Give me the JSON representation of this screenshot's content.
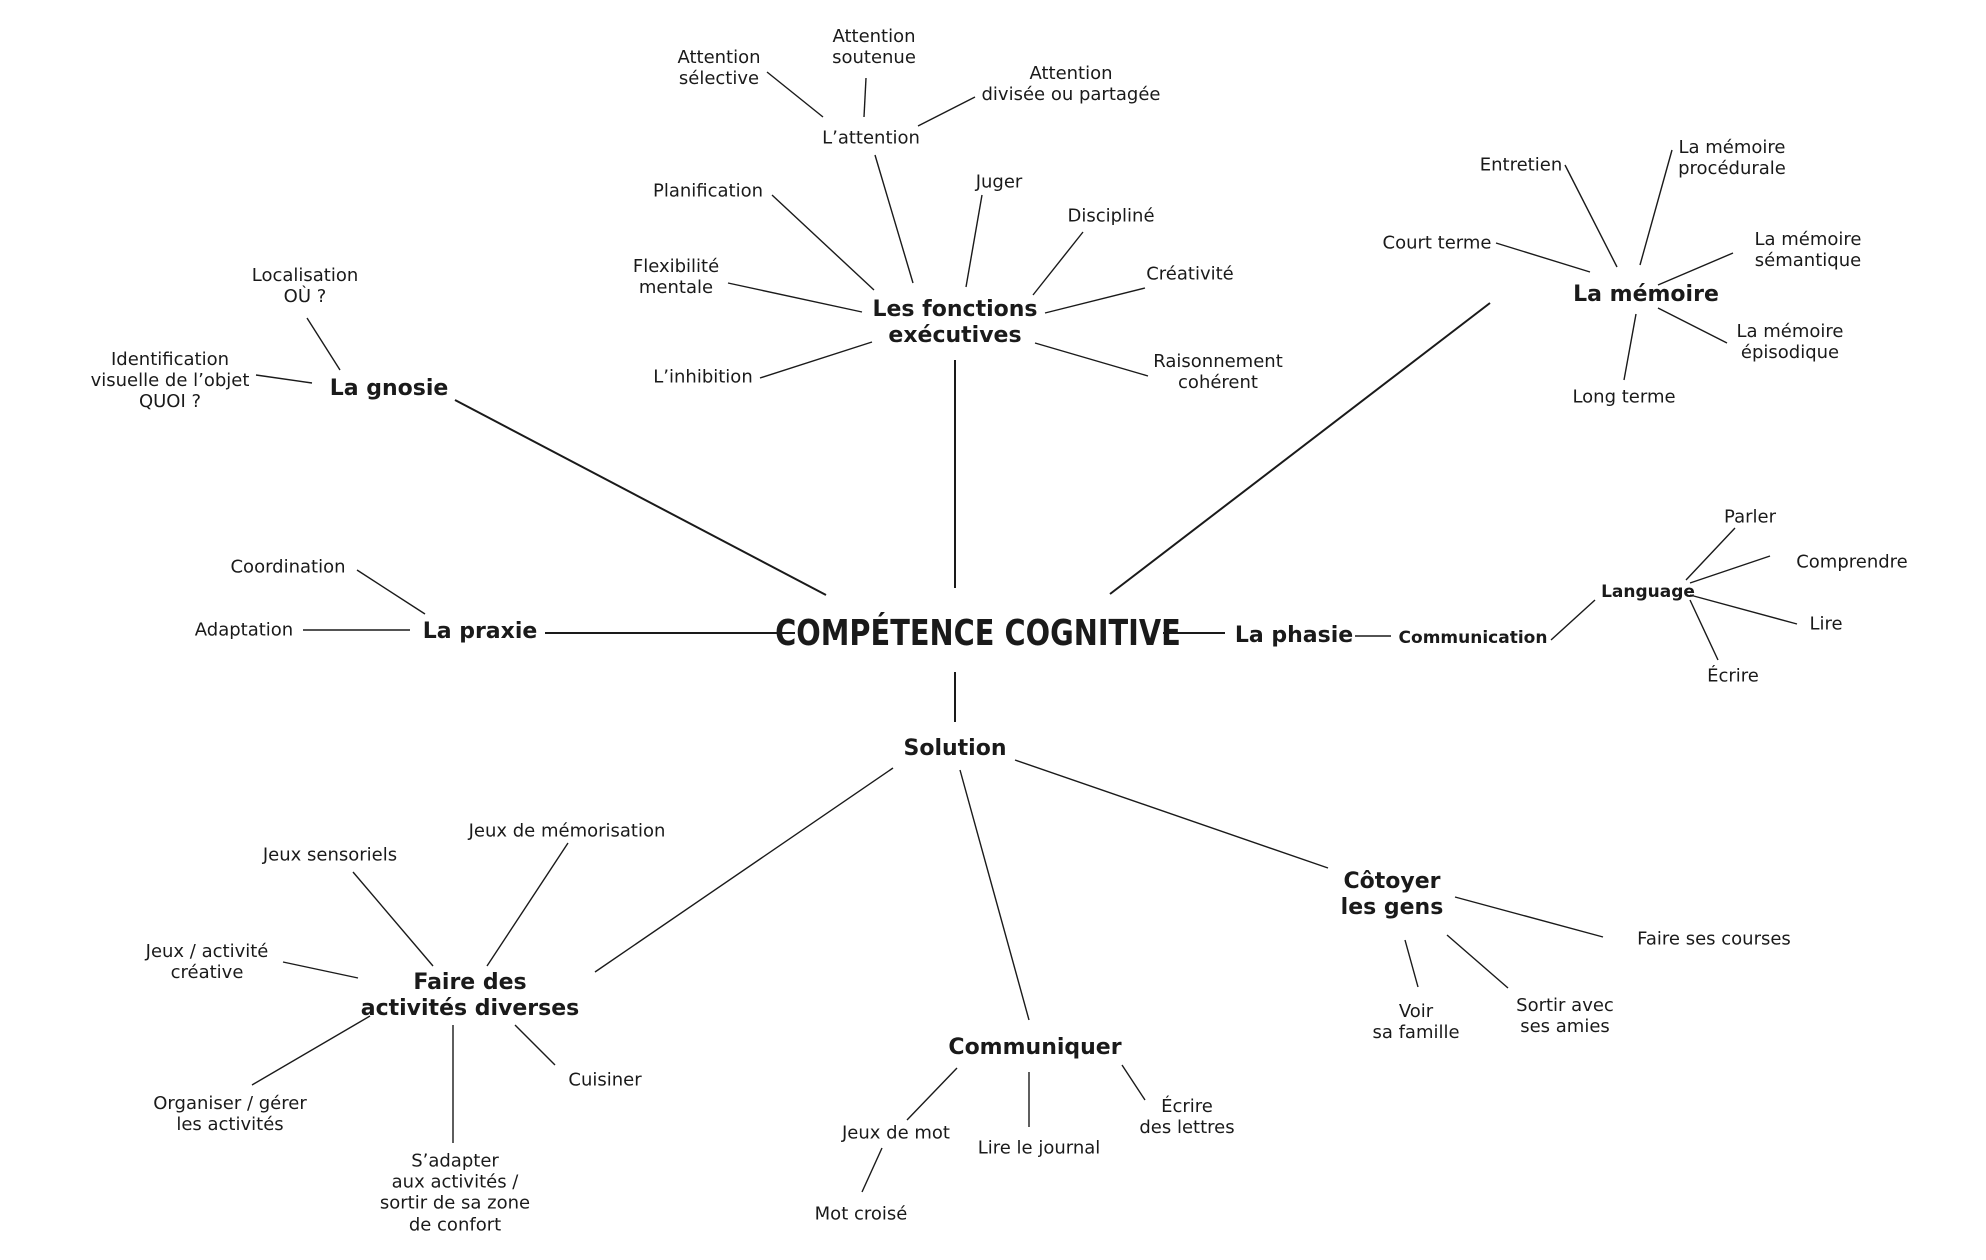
{
  "center": "COMPÉTENCE COGNITIVE",
  "executive": {
    "title": "Les fonctions\nexécutives",
    "planification": "Planification",
    "flexibilite": "Flexibilité\nmentale",
    "inhibition": "L’inhibition",
    "juger": "Juger",
    "discipline": "Discipliné",
    "creativite": "Créativité",
    "raisonnement": "Raisonnement\ncohérent"
  },
  "attention": {
    "title": "L’attention",
    "selective": "Attention\nsélective",
    "soutenue": "Attention\nsoutenue",
    "divisee": "Attention\ndivisée ou partagée"
  },
  "memory": {
    "title": "La mémoire",
    "entretien": "Entretien",
    "procedurale": "La mémoire\nprocédurale",
    "court_terme": "Court terme",
    "semantique": "La mémoire\nsémantique",
    "episodique": "La mémoire\népisodique",
    "long_terme": "Long terme"
  },
  "gnosie": {
    "title": "La gnosie",
    "localisation": "Localisation\nOÙ ?",
    "identification": "Identification\nvisuelle de l’objet\nQUOI ?"
  },
  "praxie": {
    "title": "La praxie",
    "coordination": "Coordination",
    "adaptation": "Adaptation"
  },
  "phasie": {
    "title": "La phasie",
    "communication": "Communication",
    "language": "Language",
    "parler": "Parler",
    "comprendre": "Comprendre",
    "lire": "Lire",
    "ecrire": "Écrire"
  },
  "solution": {
    "title": "Solution",
    "activites": {
      "title": "Faire des\nactivités diverses",
      "sensoriels": "Jeux sensoriels",
      "memorisation": "Jeux de mémorisation",
      "creative": "Jeux / activité\ncréative",
      "organiser": "Organiser / gérer\nles activités",
      "adapter": "S’adapter\naux activités /\nsortir de sa zone\nde confort",
      "cuisiner": "Cuisiner"
    },
    "communiquer": {
      "title": "Communiquer",
      "jeux_mot": "Jeux de mot",
      "mot_croise": "Mot croisé",
      "journal": "Lire le journal",
      "lettres": "Écrire\ndes lettres"
    },
    "cotoyer": {
      "title": "Côtoyer\nles gens",
      "courses": "Faire ses courses",
      "famille": "Voir\nsa famille",
      "amies": "Sortir avec\nses amies"
    }
  }
}
